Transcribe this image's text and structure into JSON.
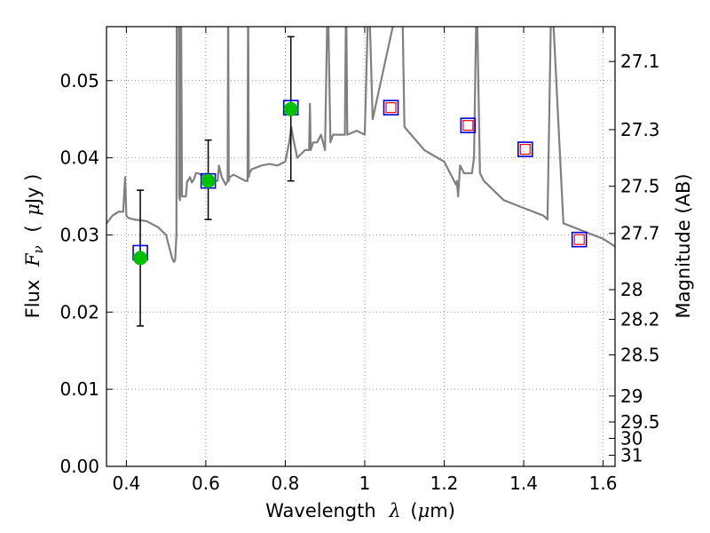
{
  "chart_data": {
    "type": "scatter",
    "title": "",
    "xlabel": "Wavelength",
    "xlabel_symbol": "λ",
    "xlabel_unit_open": "(",
    "xlabel_unit_mu": "μ",
    "xlabel_unit_rest": "m)",
    "ylabel": "Flux",
    "ylabel_symbol": "F",
    "ylabel_subscript": "ν",
    "ylabel_unit_open": "(",
    "ylabel_unit_mu": "μ",
    "ylabel_unit_rest": "Jy )",
    "y2label": "Magnitude (AB)",
    "xlim": [
      0.35,
      1.63
    ],
    "ylim": [
      0.0,
      0.057
    ],
    "grid": true,
    "xticks": [
      0.4,
      0.6,
      0.8,
      1.0,
      1.2,
      1.4,
      1.6
    ],
    "xtick_labels": [
      "0.4",
      "0.6",
      "0.8",
      "1",
      "1.2",
      "1.4",
      "1.6"
    ],
    "yticks": [
      0.0,
      0.01,
      0.02,
      0.03,
      0.04,
      0.05
    ],
    "ytick_labels": [
      "0.00",
      "0.01",
      "0.02",
      "0.03",
      "0.04",
      "0.05"
    ],
    "y2ticks": [
      27.1,
      27.3,
      27.5,
      27.7,
      28,
      28.2,
      28.5,
      29,
      29.5,
      30,
      31
    ],
    "y2tick_labels": [
      "27.1",
      "27.3",
      "27.5",
      "27.7",
      "28",
      "28.2",
      "28.5",
      "29",
      "29.5",
      "30",
      "31"
    ],
    "colors": {
      "model": "#808080",
      "observed": "#00c000",
      "model_band": "#0000dd",
      "upper": "#ff0000",
      "errorbar": "#000000",
      "grid": "#999999"
    },
    "series": [
      {
        "name": "model_spectrum",
        "kind": "line",
        "x": [
          0.35,
          0.365,
          0.38,
          0.392,
          0.397,
          0.4,
          0.405,
          0.42,
          0.45,
          0.48,
          0.5,
          0.51,
          0.515,
          0.52,
          0.523,
          0.526,
          0.527,
          0.532,
          0.533,
          0.535,
          0.5375,
          0.54,
          0.55,
          0.553,
          0.555,
          0.56,
          0.565,
          0.57,
          0.575,
          0.58,
          0.6,
          0.62,
          0.63,
          0.633,
          0.64,
          0.65,
          0.655,
          0.6563,
          0.6575,
          0.66,
          0.67,
          0.7,
          0.705,
          0.7065,
          0.708,
          0.71,
          0.715,
          0.74,
          0.76,
          0.78,
          0.8,
          0.81,
          0.815,
          0.82,
          0.83,
          0.85,
          0.86,
          0.862,
          0.864,
          0.87,
          0.88,
          0.89,
          0.9,
          0.9069,
          0.9135,
          0.92,
          0.95,
          0.9532,
          0.956,
          0.98,
          1.0,
          1.01,
          1.02,
          1.0938,
          1.1,
          1.15,
          1.2,
          1.23,
          1.232,
          1.235,
          1.24,
          1.25,
          1.27,
          1.275,
          1.2818,
          1.29,
          1.3,
          1.35,
          1.4,
          1.45,
          1.46,
          1.47,
          1.5,
          1.55,
          1.6,
          1.63
        ],
        "y": [
          0.0315,
          0.0325,
          0.033,
          0.033,
          0.0375,
          0.0325,
          0.0322,
          0.032,
          0.0318,
          0.031,
          0.03,
          0.028,
          0.027,
          0.0265,
          0.0268,
          0.03,
          0.062,
          0.062,
          0.035,
          0.0345,
          0.062,
          0.035,
          0.035,
          0.037,
          0.037,
          0.0375,
          0.0368,
          0.0372,
          0.038,
          0.038,
          0.0375,
          0.037,
          0.037,
          0.039,
          0.0375,
          0.0365,
          0.037,
          0.062,
          0.037,
          0.0375,
          0.0378,
          0.037,
          0.037,
          0.062,
          0.0375,
          0.038,
          0.0385,
          0.039,
          0.0392,
          0.039,
          0.0395,
          0.042,
          0.044,
          0.0425,
          0.04,
          0.041,
          0.041,
          0.047,
          0.041,
          0.042,
          0.042,
          0.043,
          0.041,
          0.062,
          0.042,
          0.043,
          0.043,
          0.062,
          0.043,
          0.0435,
          0.043,
          0.0625,
          0.045,
          0.0625,
          0.044,
          0.041,
          0.0395,
          0.0365,
          0.037,
          0.035,
          0.039,
          0.038,
          0.038,
          0.04,
          0.062,
          0.038,
          0.037,
          0.0345,
          0.0335,
          0.0325,
          0.032,
          0.0625,
          0.0315,
          0.0305,
          0.0295,
          0.0285
        ]
      },
      {
        "name": "observed_photometry",
        "kind": "points",
        "x": [
          0.435,
          0.606,
          0.814
        ],
        "y": [
          0.027,
          0.037,
          0.0463
        ],
        "yerr_low": [
          0.0182,
          0.032,
          0.037
        ],
        "yerr_high": [
          0.0358,
          0.0423,
          0.0557
        ]
      },
      {
        "name": "model_band_fluxes",
        "kind": "open_squares",
        "x": [
          0.435,
          0.606,
          0.814,
          1.066,
          1.26,
          1.404,
          1.54
        ],
        "y": [
          0.0277,
          0.037,
          0.0465,
          0.0465,
          0.0442,
          0.0411,
          0.0294
        ]
      },
      {
        "name": "predicted_fluxes",
        "kind": "small_open_squares",
        "x": [
          1.066,
          1.26,
          1.404,
          1.54
        ],
        "y": [
          0.0465,
          0.0442,
          0.0411,
          0.0294
        ]
      }
    ]
  }
}
